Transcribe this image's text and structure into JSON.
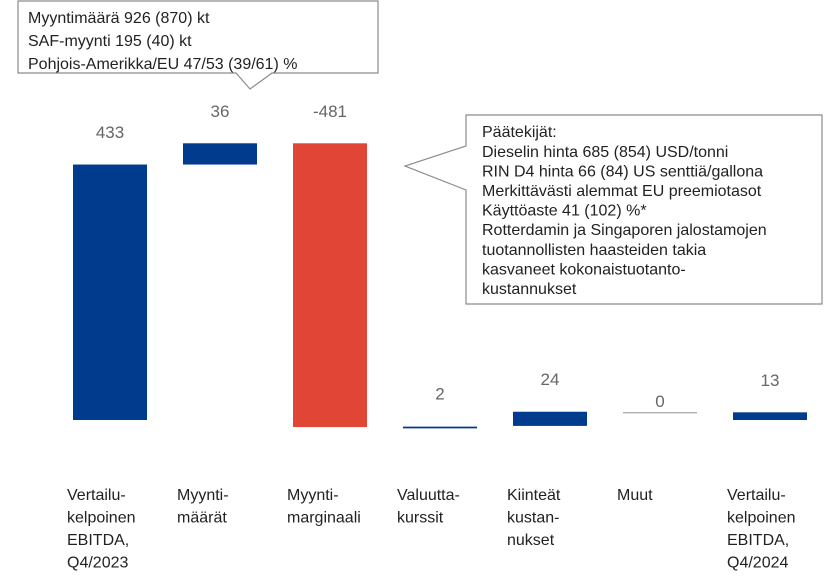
{
  "chart_data": {
    "type": "waterfall",
    "categories": [
      [
        "Vertailu-",
        "kelpoinen",
        "EBITDA,",
        "Q4/2023"
      ],
      [
        "Myynti-",
        "määrät"
      ],
      [
        "Myynti-",
        "marginaali"
      ],
      [
        "Valuutta-",
        "kurssit"
      ],
      [
        "Kiinteät",
        "kustan-",
        "nukset"
      ],
      [
        "Muut"
      ],
      [
        "Vertailu-",
        "kelpoinen",
        "EBITDA,",
        "Q4/2024"
      ]
    ],
    "values": [
      433,
      36,
      -481,
      2,
      24,
      0,
      13
    ],
    "colors": {
      "increase": "#003b8e",
      "decrease": "#e04536",
      "zero": "#a6a6a6"
    },
    "annotations": [
      {
        "lines": [
          "Myyntimäärä 926 (870) kt",
          "SAF-myynti 195 (40) kt",
          "Pohjois-Amerikka/EU 47/53 (39/61) %"
        ]
      },
      {
        "lines": [
          "Päätekijät:",
          "Dieselin hinta 685 (854) USD/tonni",
          "RIN D4 hinta 66 (84) US senttiä/gallona",
          "Merkittävästi alemmat EU preemiotasot",
          "Käyttöaste 41 (102) %*",
          "Rotterdamin ja Singaporen jalostamojen",
          "tuotannollisten haasteiden takia",
          "kasvaneet kokonaistuotanto-",
          "kustannukset"
        ]
      }
    ]
  }
}
